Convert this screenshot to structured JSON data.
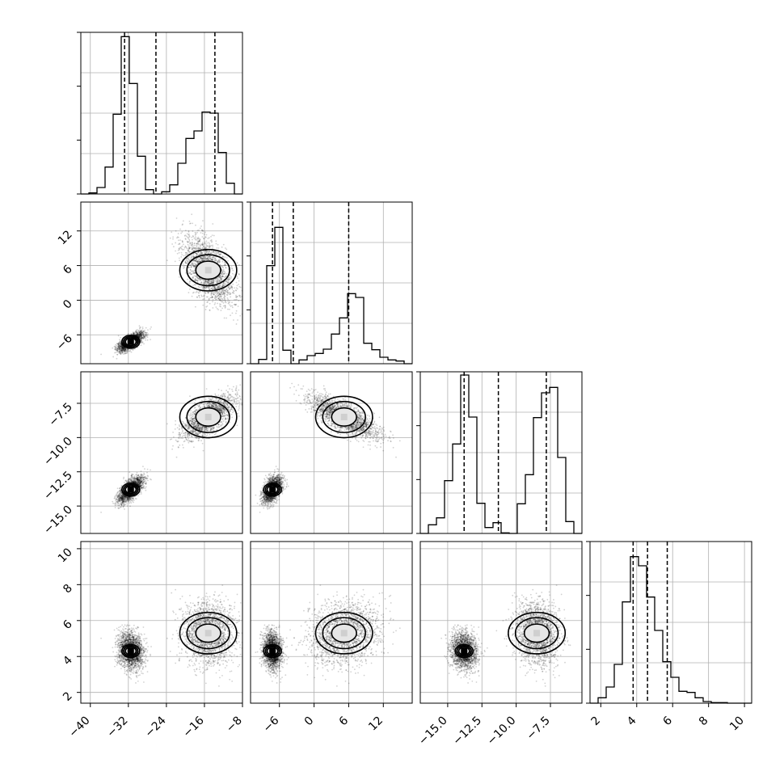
{
  "chart_data": {
    "type": "corner",
    "title": "",
    "grid": true,
    "quantile_style": "dashed",
    "contour_levels": [
      0.39,
      0.86,
      0.99
    ],
    "parameters": [
      {
        "index": 0,
        "range": [
          -42,
          -8
        ],
        "ticks": [
          -40,
          -32,
          -24,
          -16,
          -8
        ],
        "tick_labels": [
          "−40",
          "−32",
          "−24",
          "−16",
          "−8"
        ],
        "quantiles": [
          -32.8,
          -26.2,
          -13.8
        ]
      },
      {
        "index": 1,
        "range": [
          -11,
          17
        ],
        "ticks": [
          -6,
          0,
          6,
          12
        ],
        "tick_labels": [
          "−6",
          "0",
          "6",
          "12"
        ],
        "quantiles": [
          -7.2,
          -3.6,
          6.0
        ]
      },
      {
        "index": 2,
        "range": [
          -17,
          -5.2
        ],
        "ticks": [
          -15,
          -12.5,
          -10,
          -7.5
        ],
        "tick_labels": [
          "−15.0",
          "−12.5",
          "−10.0",
          "−7.5"
        ],
        "quantiles": [
          -13.8,
          -11.3,
          -7.8
        ]
      },
      {
        "index": 3,
        "range": [
          1.4,
          10.4
        ],
        "ticks": [
          2,
          4,
          6,
          8,
          10
        ],
        "tick_labels": [
          "2",
          "4",
          "6",
          "8",
          "10"
        ],
        "quantiles": [
          3.8,
          4.6,
          5.7
        ]
      }
    ],
    "histograms": [
      {
        "param": 0,
        "bin_edges": [
          -42,
          -40.3,
          -38.6,
          -36.9,
          -35.2,
          -33.5,
          -31.8,
          -30.1,
          -28.4,
          -26.7,
          -25,
          -23.3,
          -21.6,
          -19.9,
          -18.2,
          -16.5,
          -14.8,
          -13.1,
          -11.4,
          -9.7,
          -8
        ],
        "counts": [
          0,
          2,
          12,
          50,
          148,
          292,
          205,
          70,
          8,
          0,
          4,
          17,
          57,
          103,
          117,
          152,
          150,
          77,
          20,
          0
        ],
        "ylim": [
          0,
          300
        ]
      },
      {
        "param": 1,
        "bin_edges": [
          -11,
          -9.6,
          -8.2,
          -6.8,
          -5.4,
          -4,
          -2.6,
          -1.2,
          0.2,
          1.6,
          3,
          4.4,
          5.8,
          7.2,
          8.6,
          10,
          11.4,
          12.8,
          14.2,
          15.6,
          17
        ],
        "counts": [
          0,
          8,
          182,
          253,
          25,
          0,
          7,
          15,
          19,
          27,
          55,
          85,
          130,
          123,
          38,
          26,
          12,
          7,
          5,
          0
        ],
        "ylim": [
          0,
          300
        ]
      },
      {
        "param": 2,
        "bin_edges": [
          -17,
          -16.41,
          -15.82,
          -15.23,
          -14.64,
          -14.05,
          -13.46,
          -12.87,
          -12.28,
          -11.69,
          -11.1,
          -10.51,
          -9.92,
          -9.33,
          -8.74,
          -8.15,
          -7.56,
          -6.97,
          -6.38,
          -5.79,
          -5.2
        ],
        "counts": [
          0,
          16,
          29,
          98,
          166,
          294,
          216,
          56,
          11,
          20,
          1,
          0,
          55,
          109,
          215,
          261,
          271,
          141,
          22,
          0
        ],
        "ylim": [
          0,
          300
        ]
      },
      {
        "param": 3,
        "bin_edges": [
          1.4,
          1.85,
          2.3,
          2.75,
          3.2,
          3.65,
          4.1,
          4.55,
          5,
          5.45,
          5.9,
          6.35,
          6.8,
          7.25,
          7.7,
          8.15,
          8.6,
          9.05,
          9.5,
          9.95,
          10.4
        ],
        "counts": [
          0,
          10,
          30,
          72,
          188,
          272,
          255,
          197,
          135,
          77,
          48,
          22,
          20,
          10,
          3,
          1,
          1,
          0,
          0,
          0
        ],
        "ylim": [
          0,
          300
        ]
      }
    ],
    "joint_modes": [
      {
        "cx": -31.5,
        "cy": -7.2,
        "cz": -13.8,
        "cw": 4.3
      },
      {
        "cx": -15.2,
        "cy": 5.2,
        "cz": -8.5,
        "cw": 5.3
      }
    ]
  }
}
